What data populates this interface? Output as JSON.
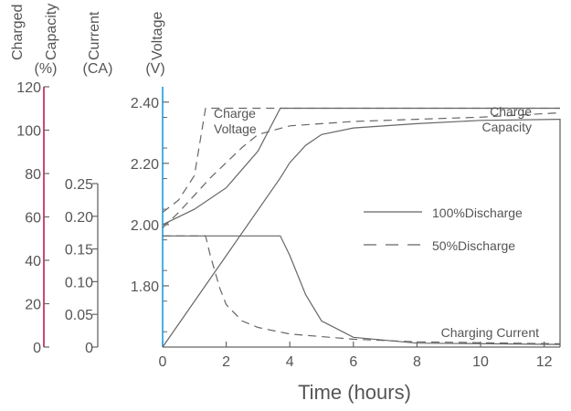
{
  "chart_data": {
    "type": "line",
    "xlabel": "Time (hours)",
    "x_ticks": [
      0,
      2,
      4,
      6,
      8,
      10,
      12
    ],
    "xlim": [
      0,
      12.5
    ],
    "axes": {
      "capacity": {
        "title_lines": [
          "Charged",
          "Capacity",
          "(%)"
        ],
        "ticks": [
          0,
          20,
          40,
          60,
          80,
          100,
          120
        ],
        "range": [
          0,
          120
        ],
        "color": "#c2185b"
      },
      "current": {
        "title_lines": [
          "Current",
          "(CA)"
        ],
        "ticks": [
          "0",
          "0.05",
          "0.10",
          "0.15",
          "0.20",
          "0.25"
        ],
        "range": [
          0,
          0.25
        ]
      },
      "voltage": {
        "title_lines": [
          "Voltage",
          "(V)"
        ],
        "ticks": [
          "1.80",
          "2.00",
          "2.20",
          "2.40"
        ],
        "range": [
          1.6,
          2.45
        ],
        "color": "#1a9fd8"
      }
    },
    "legend": [
      {
        "label": "100%Discharge",
        "style": "solid"
      },
      {
        "label": "50%Discharge",
        "style": "dashed"
      }
    ],
    "annotations": [
      {
        "lines": [
          "Charge",
          "Voltage"
        ]
      },
      {
        "lines": [
          "Charge",
          "Capacity"
        ]
      },
      {
        "lines": [
          "Charging Current"
        ]
      }
    ],
    "series": [
      {
        "group": "Charge Voltage",
        "style": "solid",
        "axis": "voltage",
        "points": [
          [
            0,
            2.0
          ],
          [
            1,
            2.05
          ],
          [
            2,
            2.12
          ],
          [
            3,
            2.24
          ],
          [
            3.7,
            2.38
          ],
          [
            12.5,
            2.38
          ]
        ]
      },
      {
        "group": "Charge Voltage",
        "style": "dashed",
        "axis": "voltage",
        "points": [
          [
            0,
            2.04
          ],
          [
            0.5,
            2.08
          ],
          [
            1,
            2.16
          ],
          [
            1.35,
            2.38
          ],
          [
            12.5,
            2.38
          ]
        ]
      },
      {
        "group": "Charge Capacity",
        "style": "solid",
        "axis": "capacity",
        "points": [
          [
            0,
            0
          ],
          [
            3.7,
            78
          ],
          [
            4,
            85
          ],
          [
            4.5,
            93
          ],
          [
            5,
            98
          ],
          [
            6,
            101
          ],
          [
            8,
            103
          ],
          [
            10,
            104.5
          ],
          [
            12.5,
            105
          ]
        ]
      },
      {
        "group": "Charge Capacity",
        "style": "dashed",
        "axis": "capacity",
        "points": [
          [
            0,
            55
          ],
          [
            0.5,
            62
          ],
          [
            1,
            70
          ],
          [
            1.5,
            78
          ],
          [
            2,
            85
          ],
          [
            2.5,
            92
          ],
          [
            3,
            98
          ],
          [
            4,
            102
          ],
          [
            6,
            104
          ],
          [
            8,
            105
          ],
          [
            10,
            106
          ],
          [
            12.5,
            108
          ]
        ]
      },
      {
        "group": "Charging Current",
        "style": "solid",
        "axis": "current",
        "points": [
          [
            0,
            0.17
          ],
          [
            3.7,
            0.17
          ],
          [
            4,
            0.14
          ],
          [
            4.5,
            0.08
          ],
          [
            5,
            0.04
          ],
          [
            6,
            0.015
          ],
          [
            8,
            0.006
          ],
          [
            12.5,
            0.004
          ]
        ]
      },
      {
        "group": "Charging Current",
        "style": "dashed",
        "axis": "current",
        "points": [
          [
            0,
            0.17
          ],
          [
            1.35,
            0.17
          ],
          [
            1.5,
            0.14
          ],
          [
            1.8,
            0.09
          ],
          [
            2,
            0.065
          ],
          [
            2.5,
            0.04
          ],
          [
            3,
            0.03
          ],
          [
            4,
            0.02
          ],
          [
            6,
            0.012
          ],
          [
            8,
            0.008
          ],
          [
            12.5,
            0.005
          ]
        ]
      }
    ]
  }
}
